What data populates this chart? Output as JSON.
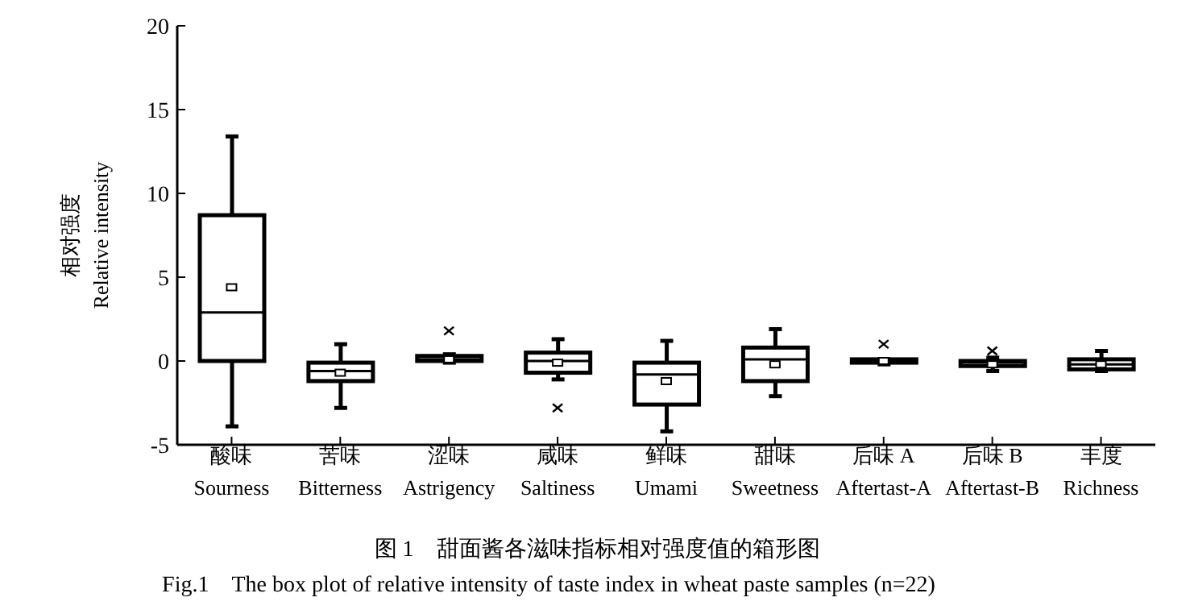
{
  "chart_data": {
    "type": "box",
    "title": "图 1　甜面酱各滋味指标相对强度值的箱形图",
    "subtitle": "Fig.1　The box plot of relative intensity of taste index in wheat paste samples (n=22)",
    "ylabel": "相对强度\nRelative intensity",
    "categories": [
      "酸味\nSourness",
      "苦味\nBitterness",
      "涩味\nAstrigency",
      "咸味\nSaltiness",
      "鲜味\nUmami",
      "甜味\nSweetness",
      "后味 A\nAftertast-A",
      "后味 B\nAftertast-B",
      "丰度\nRichness"
    ],
    "boxes": [
      {
        "low": -3.9,
        "q1": 0,
        "median": 2.9,
        "q3": 8.7,
        "high": 13.4,
        "mean": 4.4
      },
      {
        "low": -2.8,
        "q1": -1.2,
        "median": -0.6,
        "q3": -0.1,
        "high": 1.0,
        "mean": -0.7
      },
      {
        "low": -0.1,
        "q1": 0,
        "median": 0.1,
        "q3": 0.3,
        "high": 0.4,
        "mean": 0.1,
        "outliers": [
          1.8
        ]
      },
      {
        "low": -1.1,
        "q1": -0.7,
        "median": 0,
        "q3": 0.5,
        "high": 1.3,
        "mean": -0.1,
        "outliers": [
          -2.8
        ]
      },
      {
        "low": -4.2,
        "q1": -2.6,
        "median": -0.8,
        "q3": -0.1,
        "high": 1.2,
        "mean": -1.2
      },
      {
        "low": -2.1,
        "q1": -1.2,
        "median": 0.1,
        "q3": 0.8,
        "high": 1.9,
        "mean": -0.2
      },
      {
        "low": -0.2,
        "q1": -0.1,
        "median": 0,
        "q3": 0.1,
        "high": 0.1,
        "mean": 0,
        "outliers": [
          1.0
        ]
      },
      {
        "low": -0.6,
        "q1": -0.3,
        "median": -0.1,
        "q3": 0,
        "high": 0.2,
        "mean": -0.2,
        "outliers": [
          0.6
        ]
      },
      {
        "low": -0.6,
        "q1": -0.5,
        "median": -0.2,
        "q3": 0.1,
        "high": 0.6,
        "mean": -0.2
      }
    ],
    "ylim": [
      -5,
      20
    ],
    "yticks": [
      -5,
      0,
      5,
      10,
      15,
      20
    ]
  }
}
